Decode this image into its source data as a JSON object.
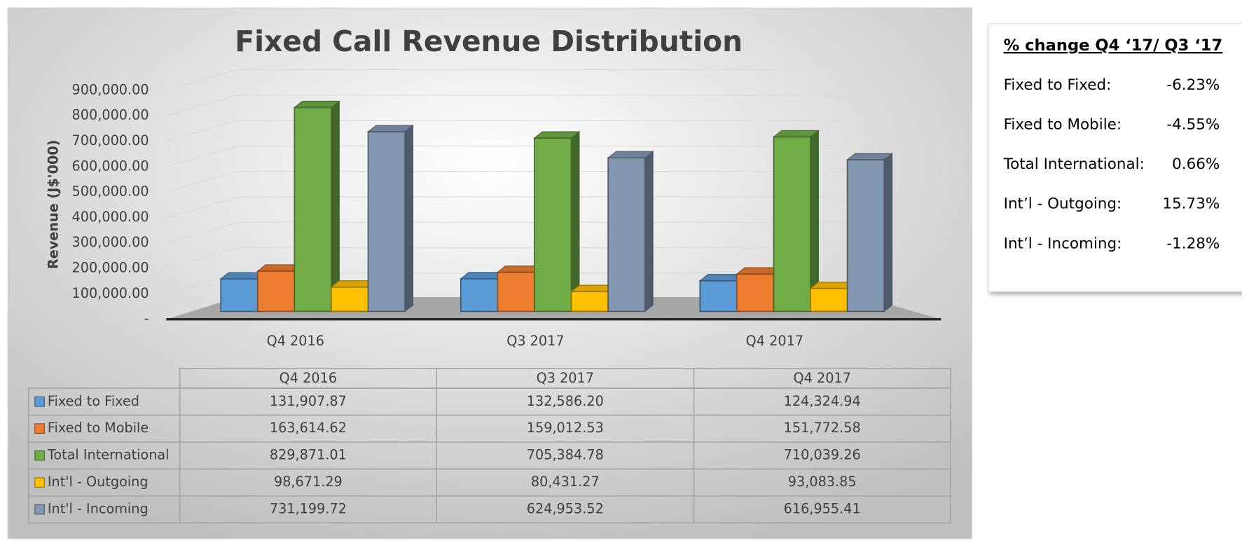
{
  "chart_data": {
    "type": "bar",
    "title": "Fixed Call Revenue Distribution",
    "y_label": "Revenue (J$'000)",
    "categories": [
      "Q4 2016",
      "Q3 2017",
      "Q4 2017"
    ],
    "series": [
      {
        "name": "Fixed to Fixed",
        "color": "#5b9bd5",
        "values": [
          131907.87,
          132586.2,
          124324.94
        ],
        "value_labels": [
          "131,907.87",
          "132,586.20",
          "124,324.94"
        ]
      },
      {
        "name": "Fixed to Mobile",
        "color": "#ed7d31",
        "values": [
          163614.62,
          159012.53,
          151772.58
        ],
        "value_labels": [
          "163,614.62",
          "159,012.53",
          "151,772.58"
        ]
      },
      {
        "name": "Total International",
        "color": "#70ad47",
        "values": [
          829871.01,
          705384.78,
          710039.26
        ],
        "value_labels": [
          "829,871.01",
          "705,384.78",
          "710,039.26"
        ]
      },
      {
        "name": "Int'l - Outgoing",
        "color": "#ffc000",
        "values": [
          98671.29,
          80431.27,
          93083.85
        ],
        "value_labels": [
          "98,671.29",
          "80,431.27",
          "93,083.85"
        ]
      },
      {
        "name": "Int'l - Incoming",
        "color": "#8497b0",
        "values": [
          731199.72,
          624953.52,
          616955.41
        ],
        "value_labels": [
          "731,199.72",
          "624,953.52",
          "616,955.41"
        ]
      }
    ],
    "ylim": [
      0,
      900000
    ],
    "yticks": [
      {
        "value": 0,
        "label": "-"
      },
      {
        "value": 100000,
        "label": "100,000.00"
      },
      {
        "value": 200000,
        "label": "200,000.00"
      },
      {
        "value": 300000,
        "label": "300,000.00"
      },
      {
        "value": 400000,
        "label": "400,000.00"
      },
      {
        "value": 500000,
        "label": "500,000.00"
      },
      {
        "value": 600000,
        "label": "600,000.00"
      },
      {
        "value": 700000,
        "label": "700,000.00"
      },
      {
        "value": 800000,
        "label": "800,000.00"
      },
      {
        "value": 900000,
        "label": "900,000.00"
      }
    ],
    "grid": true
  },
  "panel": {
    "title": "% change Q4 ‘17/ Q3 ‘17",
    "rows": [
      {
        "label": "Fixed to Fixed:",
        "value": "-6.23%"
      },
      {
        "label": "Fixed to Mobile:",
        "value": "-4.55%"
      },
      {
        "label": "Total International:",
        "value": "0.66%"
      },
      {
        "label": "Int’l - Outgoing:",
        "value": "15.73%"
      },
      {
        "label": "Int’l - Incoming:",
        "value": "-1.28%"
      }
    ]
  }
}
